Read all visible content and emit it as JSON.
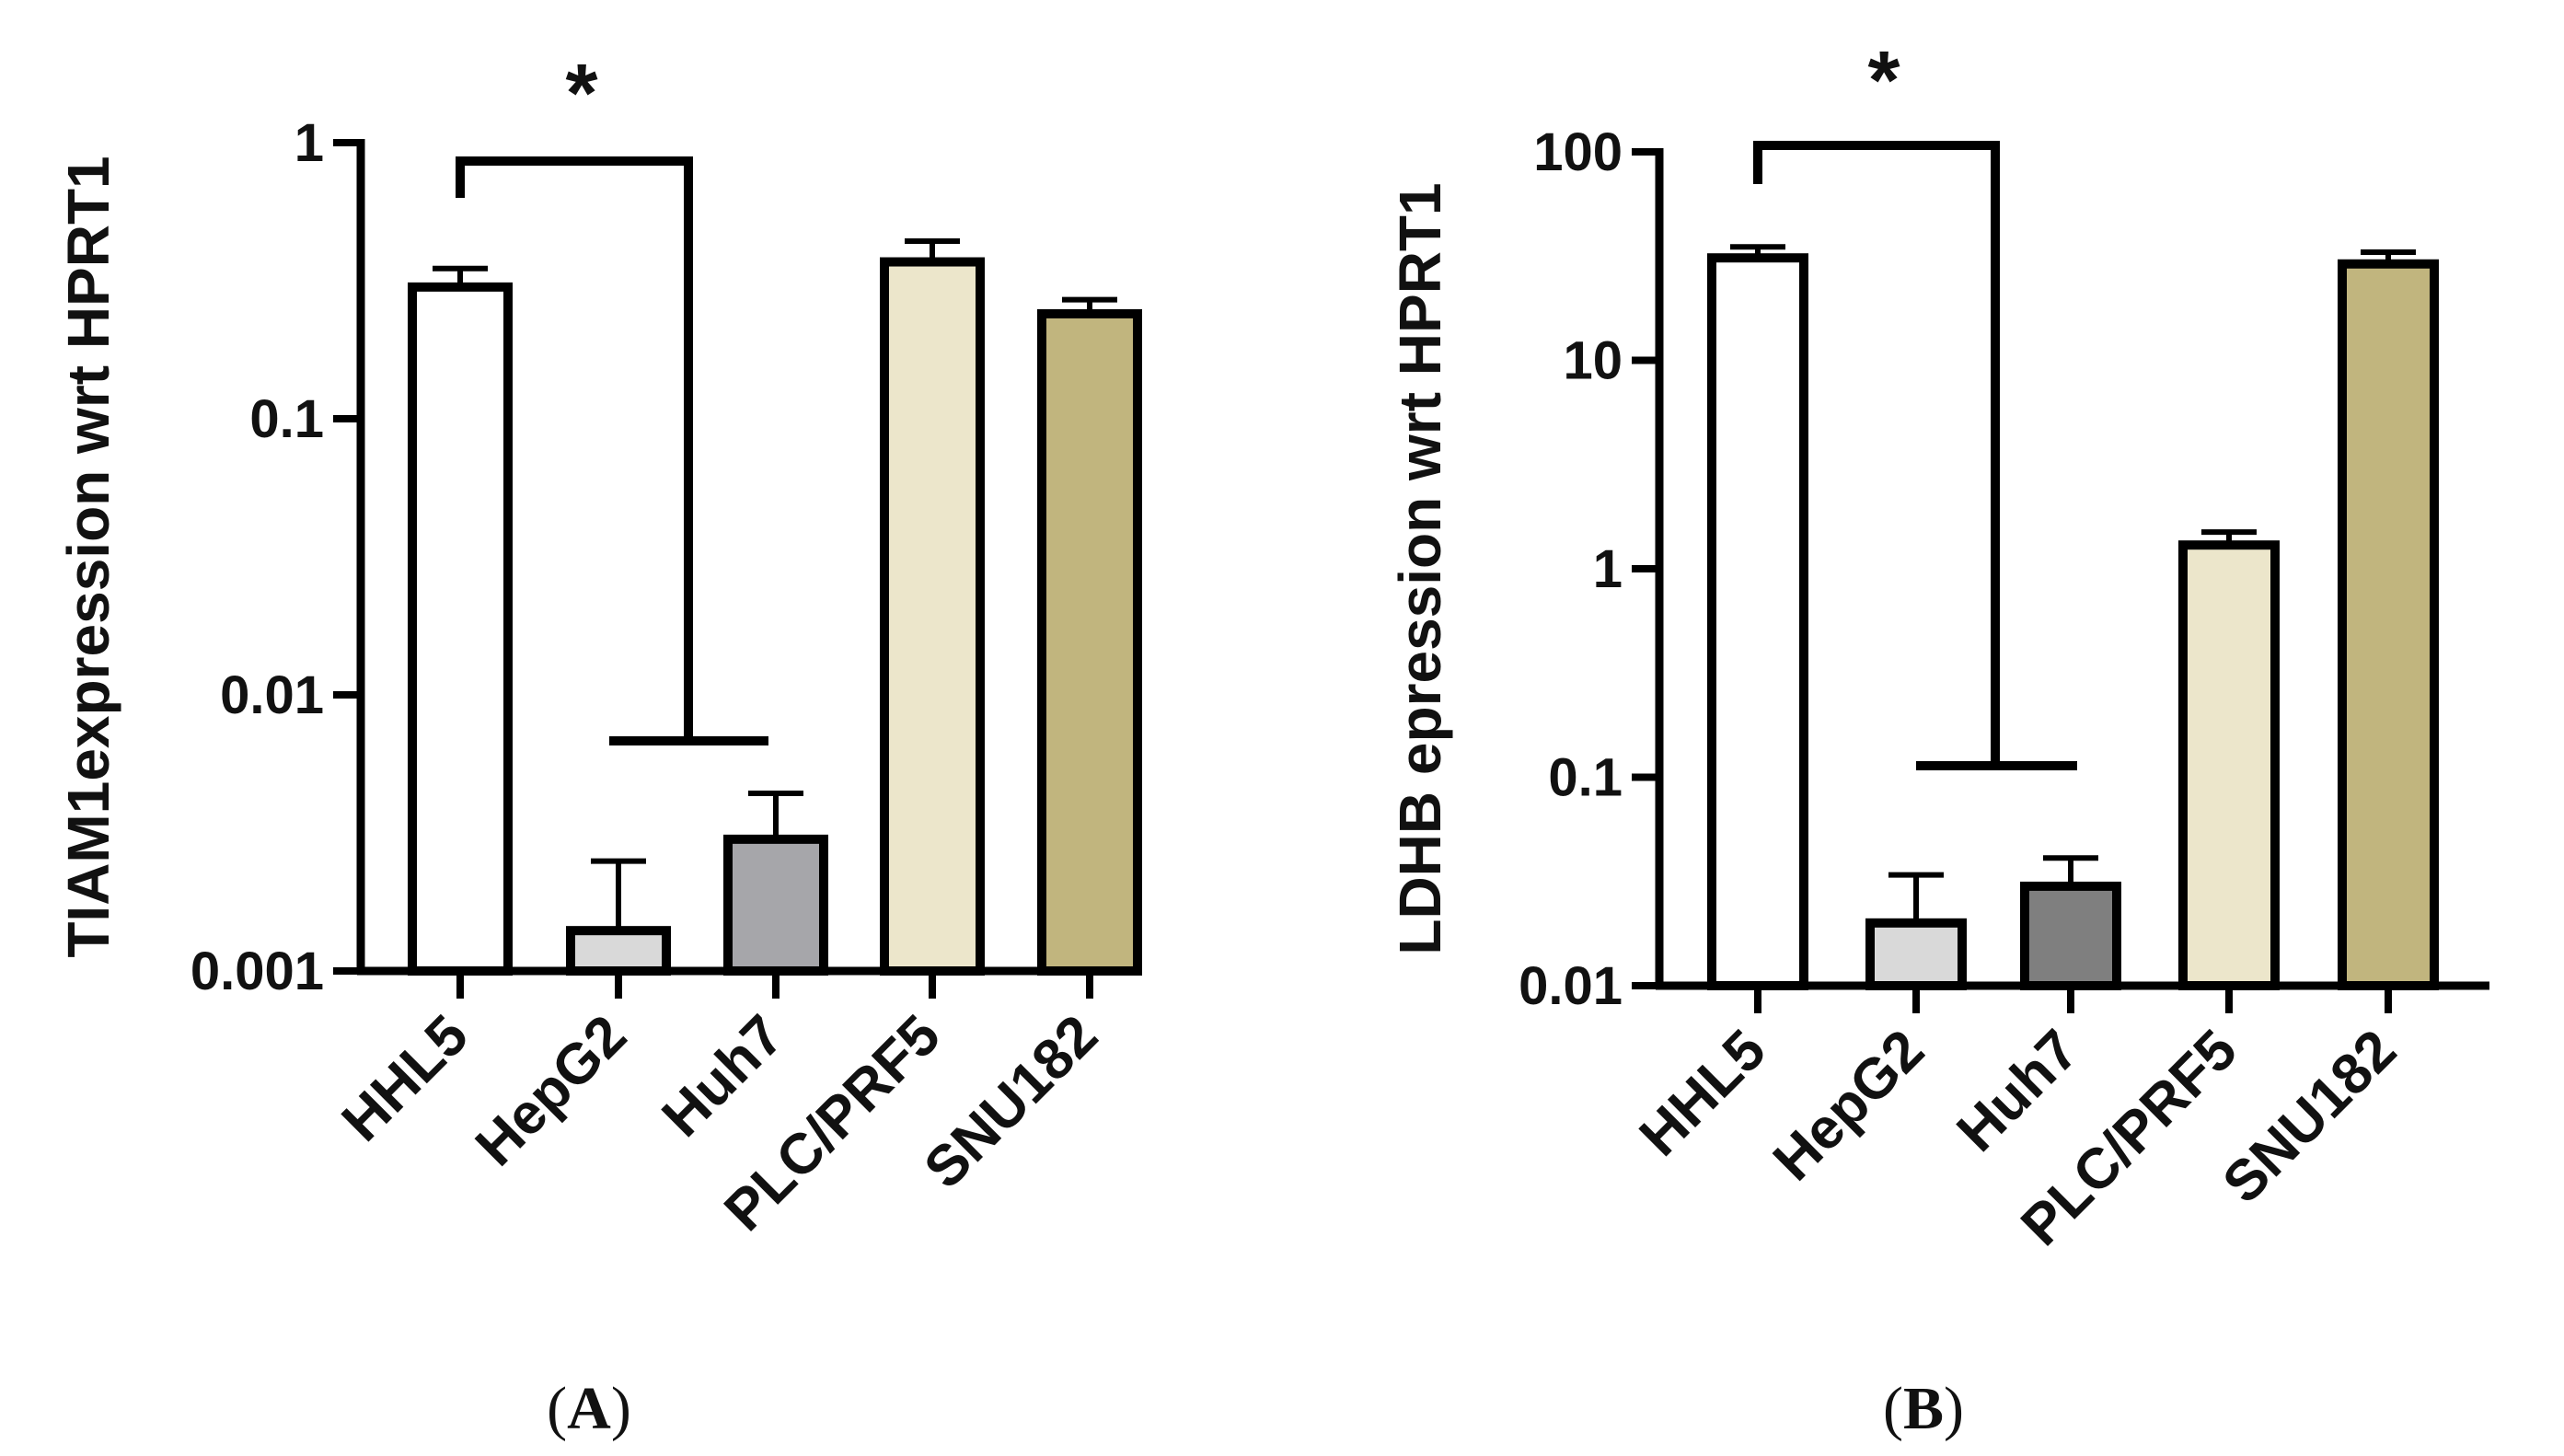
{
  "figure": {
    "panel_captions": [
      {
        "open": "(",
        "letter": "A",
        "close": ")"
      },
      {
        "open": "(",
        "letter": "B",
        "close": ")"
      }
    ]
  },
  "chart_data": [
    {
      "type": "bar",
      "panel": "A",
      "title": "",
      "xlabel": "",
      "ylabel": "TIAM1expression wrt HPRT1",
      "yscale": "log",
      "ylim": [
        0.001,
        1
      ],
      "yticks": [
        0.001,
        0.01,
        0.1,
        1
      ],
      "ytick_labels": [
        "0.001",
        "0.01",
        "0.1",
        "1"
      ],
      "categories": [
        "HHL5",
        "HepG2",
        "Huh7",
        "PLC/PRF5",
        "SNU182"
      ],
      "values": [
        0.3,
        0.0014,
        0.003,
        0.37,
        0.24
      ],
      "error_upper": [
        0.35,
        0.0025,
        0.0044,
        0.44,
        0.27
      ],
      "fill_colors": [
        "#ffffff",
        "#d9d9d9",
        "#a6a6aa",
        "#ece6cb",
        "#c1b57e"
      ],
      "significance": {
        "from": "HHL5",
        "to": [
          "HepG2",
          "Huh7"
        ],
        "label": "*"
      }
    },
    {
      "type": "bar",
      "panel": "B",
      "title": "",
      "xlabel": "",
      "ylabel": "LDHB epression wrt HPRT1",
      "yscale": "log",
      "ylim": [
        0.01,
        100
      ],
      "yticks": [
        0.01,
        0.1,
        1,
        10,
        100
      ],
      "ytick_labels": [
        "0.01",
        "0.1",
        "1",
        "10",
        "100"
      ],
      "categories": [
        "HHL5",
        "HepG2",
        "Huh7",
        "PLC/PRF5",
        "SNU182"
      ],
      "values": [
        31,
        0.02,
        0.03,
        1.3,
        29
      ],
      "error_upper": [
        35,
        0.034,
        0.041,
        1.5,
        33
      ],
      "fill_colors": [
        "#ffffff",
        "#d9d9d9",
        "#7f7f7f",
        "#ece6cb",
        "#c1b57e"
      ],
      "significance": {
        "from": "HHL5",
        "to": [
          "HepG2",
          "Huh7"
        ],
        "label": "*"
      }
    }
  ]
}
